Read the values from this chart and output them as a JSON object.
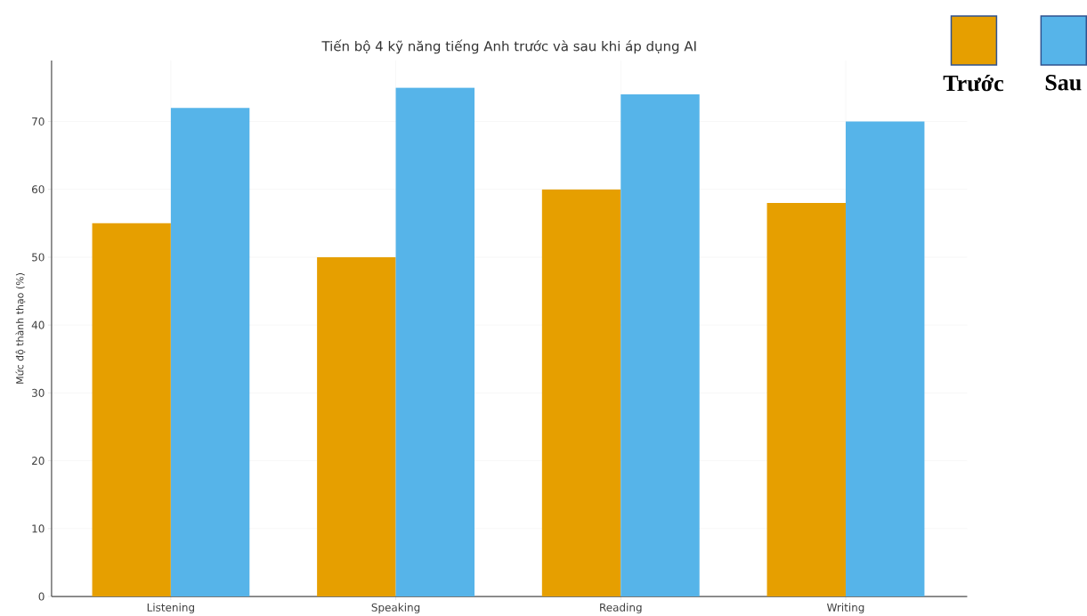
{
  "chart_data": {
    "type": "bar",
    "title": "Tiến bộ 4 kỹ năng tiếng Anh trước và sau khi áp dụng AI",
    "ylabel": "Mức độ thành thạo (%)",
    "categories": [
      "Listening",
      "Speaking",
      "Reading",
      "Writing"
    ],
    "series": [
      {
        "name": "Trước",
        "color": "#e69f00",
        "values": [
          55,
          50,
          60,
          58
        ]
      },
      {
        "name": "Sau",
        "color": "#56b4e9",
        "values": [
          72,
          75,
          74,
          70
        ]
      }
    ],
    "ylim": [
      0,
      79
    ],
    "yticks": [
      0,
      10,
      20,
      30,
      40,
      50,
      60,
      70
    ],
    "grid": true,
    "legend": "top right"
  }
}
